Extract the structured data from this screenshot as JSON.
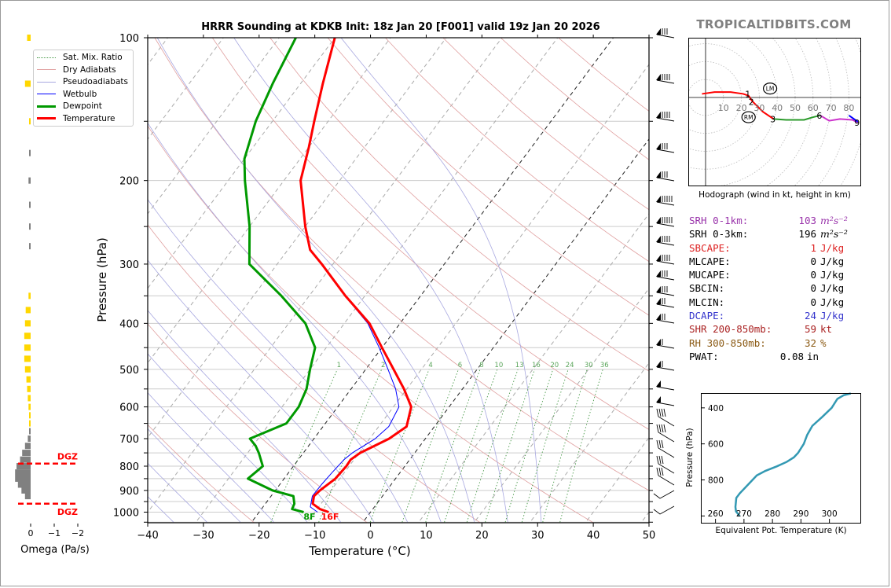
{
  "brand": "TROPICALTIDBITS.COM",
  "title": "HRRR Sounding at KDKB Init: 18z Jan 20 [F001] valid 19z Jan 20 2026",
  "legend": [
    {
      "label": "Sat. Mix. Ratio",
      "color": "#4a9a4a",
      "style": "dotted"
    },
    {
      "label": "Dry Adiabats",
      "color": "#e0a0a0",
      "style": "solid"
    },
    {
      "label": "Pseudoadiabats",
      "color": "#a8a8e0",
      "style": "solid"
    },
    {
      "label": "Wetbulb",
      "color": "#0000ff",
      "style": "solid"
    },
    {
      "label": "Dewpoint",
      "color": "#009900",
      "style": "thick"
    },
    {
      "label": "Temperature",
      "color": "#ff0000",
      "style": "thick"
    }
  ],
  "surface_labels": {
    "dewpoint": "8F",
    "temperature": "16F"
  },
  "mixing_ratio_labels": [
    "1",
    "2",
    "4",
    "6",
    "8",
    "10",
    "13",
    "16",
    "20",
    "24",
    "30",
    "36"
  ],
  "stats": [
    {
      "label": "SRH 0-1km:",
      "value": "103",
      "unit": "m²s⁻²",
      "color": "#9933aa"
    },
    {
      "label": "SRH 0-3km:",
      "value": "196",
      "unit": "m²s⁻²",
      "color": "#000000"
    },
    {
      "label": "SBCAPE:",
      "value": "1",
      "unit": "J/kg",
      "color": "#dd2222"
    },
    {
      "label": "MLCAPE:",
      "value": "0",
      "unit": "J/kg",
      "color": "#000000"
    },
    {
      "label": "MUCAPE:",
      "value": "0",
      "unit": "J/kg",
      "color": "#000000"
    },
    {
      "label": "SBCIN:",
      "value": "0",
      "unit": "J/kg",
      "color": "#000000"
    },
    {
      "label": "MLCIN:",
      "value": "0",
      "unit": "J/kg",
      "color": "#000000"
    },
    {
      "label": "DCAPE:",
      "value": "24",
      "unit": "J/kg",
      "color": "#3333cc"
    },
    {
      "label": "SHR 200-850mb:",
      "value": "59",
      "unit": "kt",
      "color": "#aa2222"
    },
    {
      "label": "RH 300-850mb:",
      "value": "32",
      "unit": "%",
      "color": "#8b5a14"
    },
    {
      "label": "PWAT:",
      "value": "0.08",
      "unit": "in",
      "color": "#000000"
    }
  ],
  "chart_data": [
    {
      "type": "line",
      "name": "skew-t",
      "title": "HRRR Sounding at KDKB Init: 18z Jan 20 [F001] valid 19z Jan 20 2026",
      "xlabel": "Temperature (°C)",
      "ylabel": "Pressure (hPa)",
      "xlim": [
        -40,
        50
      ],
      "ylim": [
        1050,
        100
      ],
      "yscale": "log",
      "skew": true,
      "xticks": [
        "−40",
        "−30",
        "−20",
        "−10",
        "0",
        "10",
        "20",
        "30",
        "40",
        "50"
      ],
      "yticks": [
        "100",
        "200",
        "300",
        "400",
        "500",
        "600",
        "700",
        "800",
        "900",
        "1000"
      ],
      "legend_position": "top-left",
      "series": [
        {
          "name": "Temperature",
          "color": "#ff0000",
          "points": [
            [
              1000,
              -7.5
            ],
            [
              985,
              -9.5
            ],
            [
              960,
              -11.5
            ],
            [
              925,
              -12.3
            ],
            [
              900,
              -12.0
            ],
            [
              850,
              -10.8
            ],
            [
              800,
              -10.5
            ],
            [
              775,
              -10.6
            ],
            [
              750,
              -9.8
            ],
            [
              700,
              -6.5
            ],
            [
              660,
              -5.0
            ],
            [
              600,
              -6.8
            ],
            [
              550,
              -10.5
            ],
            [
              500,
              -15
            ],
            [
              450,
              -20
            ],
            [
              400,
              -25.5
            ],
            [
              350,
              -33.5
            ],
            [
              300,
              -42
            ],
            [
              280,
              -46
            ],
            [
              250,
              -50
            ],
            [
              200,
              -57
            ],
            [
              170,
              -60
            ],
            [
              150,
              -62.5
            ],
            [
              125,
              -66
            ],
            [
              100,
              -70
            ]
          ]
        },
        {
          "name": "Wetbulb",
          "color": "#0000ff",
          "points": [
            [
              1000,
              -9.5
            ],
            [
              975,
              -11.5
            ],
            [
              925,
              -12.6
            ],
            [
              875,
              -12.5
            ],
            [
              825,
              -12.2
            ],
            [
              775,
              -11.8
            ],
            [
              750,
              -11.2
            ],
            [
              700,
              -9.0
            ],
            [
              660,
              -8.2
            ],
            [
              600,
              -9.0
            ],
            [
              550,
              -12.0
            ],
            [
              500,
              -16.0
            ],
            [
              450,
              -20.5
            ],
            [
              400,
              -25.8
            ],
            [
              350,
              -33.6
            ]
          ]
        },
        {
          "name": "Dewpoint",
          "color": "#009900",
          "points": [
            [
              1000,
              -12.0
            ],
            [
              985,
              -14.5
            ],
            [
              960,
              -14.8
            ],
            [
              925,
              -16
            ],
            [
              900,
              -20.5
            ],
            [
              850,
              -26.5
            ],
            [
              825,
              -26.0
            ],
            [
              800,
              -25.5
            ],
            [
              750,
              -28
            ],
            [
              725,
              -29.5
            ],
            [
              700,
              -31.5
            ],
            [
              650,
              -27
            ],
            [
              600,
              -27
            ],
            [
              550,
              -28
            ],
            [
              500,
              -30
            ],
            [
              450,
              -32
            ],
            [
              400,
              -37
            ],
            [
              350,
              -45
            ],
            [
              300,
              -55
            ],
            [
              250,
              -60
            ],
            [
              200,
              -67
            ],
            [
              180,
              -70
            ],
            [
              150,
              -73
            ],
            [
              125,
              -75
            ],
            [
              100,
              -77
            ]
          ]
        }
      ],
      "annotations": [
        "8F",
        "16F"
      ]
    },
    {
      "type": "bar",
      "name": "omega-profile",
      "xlabel": "Omega (Pa/s)",
      "xticks": [
        "0",
        "−1",
        "−2"
      ],
      "xlim": [
        0.3,
        -2.2
      ],
      "annotations": [
        "DGZ",
        "DGZ"
      ],
      "dgz_bounds_hPa": [
        790,
        960
      ],
      "series": [
        {
          "name": "rising",
          "color": "#ffd700",
          "levels_hPa": [
            100,
            125,
            150,
            350,
            375,
            400,
            425,
            450,
            475,
            500,
            525,
            550,
            575,
            600,
            625,
            650
          ],
          "values": [
            -0.05,
            -0.08,
            -0.02,
            -0.03,
            -0.07,
            -0.08,
            -0.09,
            -0.09,
            -0.09,
            -0.08,
            -0.06,
            -0.05,
            -0.04,
            -0.03,
            -0.02,
            -0.01
          ]
        },
        {
          "name": "sinking",
          "color": "#808080",
          "levels_hPa": [
            175,
            200,
            225,
            250,
            275,
            675,
            700,
            725,
            750,
            775,
            800,
            825,
            850,
            875,
            900,
            925
          ],
          "values": [
            0.02,
            0.03,
            0.02,
            0.02,
            0.02,
            0.01,
            0.04,
            0.08,
            0.12,
            0.15,
            0.2,
            0.22,
            0.22,
            0.18,
            0.13,
            0.08
          ]
        }
      ]
    },
    {
      "type": "line",
      "name": "hodograph",
      "xlabel": "Hodograph (wind in kt, height in km)",
      "ring_labels": [
        "10",
        "20",
        "30",
        "40",
        "50",
        "60",
        "70",
        "80"
      ],
      "storm_motion_labels": [
        "LM",
        "RM"
      ],
      "height_labels": [
        "1",
        "2",
        "3",
        "6",
        "9"
      ],
      "series": [
        {
          "name": "0-3km",
          "color": "#ff0000",
          "points": [
            [
              -2,
              2
            ],
            [
              5,
              3
            ],
            [
              14,
              3
            ],
            [
              21,
              2
            ],
            [
              24,
              1
            ],
            [
              26,
              -2
            ],
            [
              32,
              -8
            ],
            [
              38,
              -12
            ]
          ]
        },
        {
          "name": "3-6km",
          "color": "#2a9a2a",
          "points": [
            [
              38,
              -12
            ],
            [
              45,
              -12.5
            ],
            [
              55,
              -12.5
            ],
            [
              60,
              -11
            ],
            [
              64,
              -10
            ]
          ]
        },
        {
          "name": "6-9km",
          "color": "#cc33cc",
          "points": [
            [
              64,
              -10
            ],
            [
              69,
              -13
            ],
            [
              75,
              -12
            ],
            [
              82,
              -12.5
            ],
            [
              85,
              -14
            ]
          ]
        },
        {
          "name": "9+km",
          "color": "#0000ff",
          "points": [
            [
              80,
              -10
            ],
            [
              85,
              -13.5
            ]
          ]
        }
      ],
      "storm_motion": {
        "LM": [
          36,
          5
        ],
        "RM": [
          24,
          -11
        ]
      }
    },
    {
      "type": "line",
      "name": "theta-e-profile",
      "xlabel": "Equivalent Pot. Temperature (K)",
      "ylabel": "Pressure (hPa)",
      "xlim": [
        255,
        311
      ],
      "ylim": [
        1040,
        320
      ],
      "xticks": [
        "260",
        "270",
        "280",
        "290",
        "300"
      ],
      "yticks": [
        "400",
        "600",
        "800"
      ],
      "series": [
        {
          "name": "Theta-E",
          "color": "#3399b3",
          "points": [
            [
              1000,
              268.5
            ],
            [
              975,
              267.2
            ],
            [
              950,
              267.0
            ],
            [
              900,
              267.3
            ],
            [
              875,
              268.5
            ],
            [
              825,
              271.5
            ],
            [
              775,
              274.5
            ],
            [
              750,
              277.5
            ],
            [
              725,
              281.5
            ],
            [
              700,
              285.0
            ],
            [
              675,
              287.5
            ],
            [
              650,
              289.0
            ],
            [
              600,
              291.0
            ],
            [
              550,
              292.2
            ],
            [
              500,
              294.0
            ],
            [
              450,
              297.5
            ],
            [
              400,
              300.8
            ],
            [
              375,
              301.8
            ],
            [
              350,
              302.8
            ],
            [
              330,
              305
            ],
            [
              320,
              307.5
            ]
          ]
        }
      ]
    }
  ]
}
